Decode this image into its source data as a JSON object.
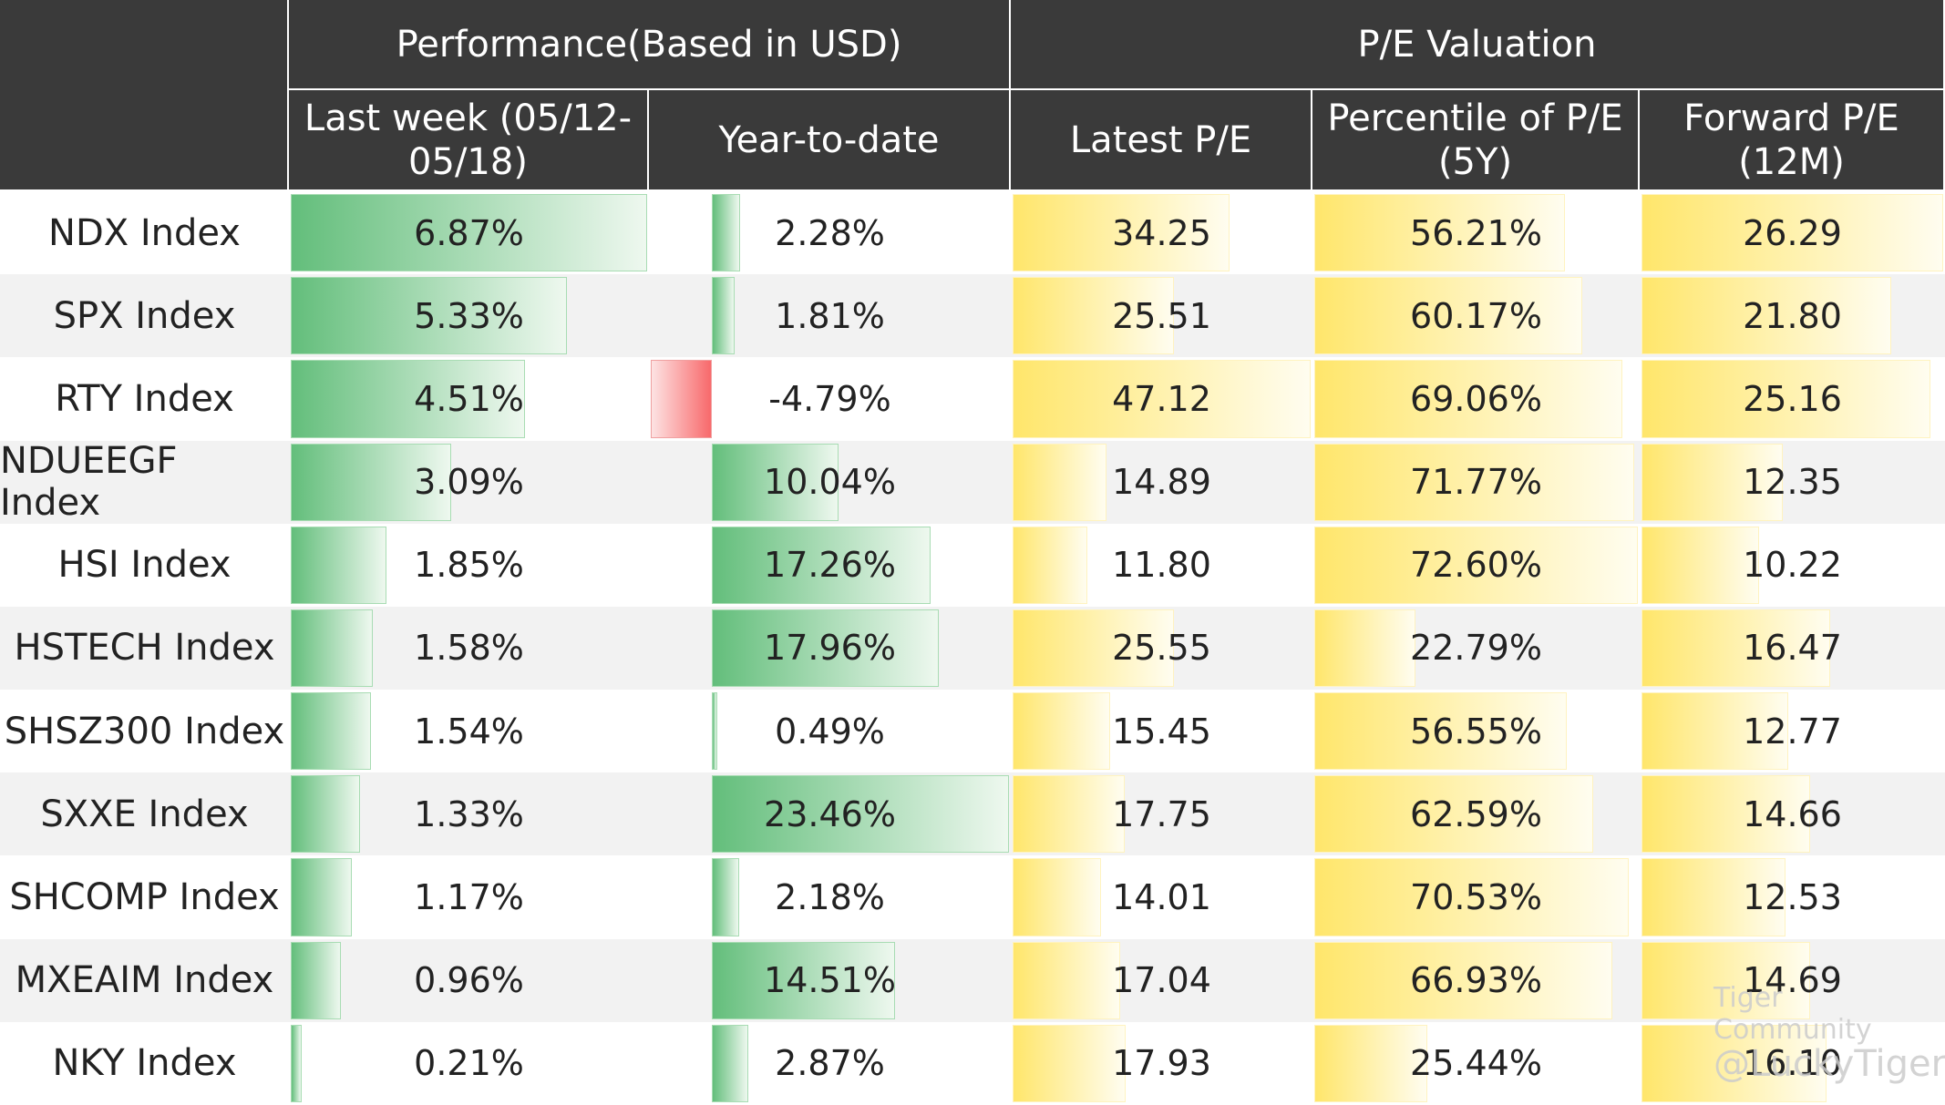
{
  "table": {
    "group_headers": [
      "Performance(Based in USD)",
      "P/E Valuation"
    ],
    "headers": [
      "Last week (05/12-05/18)",
      "Year-to-date",
      "Latest P/E",
      "Percentile of P/E (5Y)",
      "Forward P/E (12M)"
    ],
    "rows": [
      [
        "NDX Index",
        "6.87%",
        "2.28%",
        "34.25",
        "56.21%",
        "26.29"
      ],
      [
        "SPX Index",
        "5.33%",
        "1.81%",
        "25.51",
        "60.17%",
        "21.80"
      ],
      [
        "RTY Index",
        "4.51%",
        "-4.79%",
        "47.12",
        "69.06%",
        "25.16"
      ],
      [
        "NDUEEGF Index",
        "3.09%",
        "10.04%",
        "14.89",
        "71.77%",
        "12.35"
      ],
      [
        "HSI Index",
        "1.85%",
        "17.26%",
        "11.80",
        "72.60%",
        "10.22"
      ],
      [
        "HSTECH Index",
        "1.58%",
        "17.96%",
        "25.55",
        "22.79%",
        "16.47"
      ],
      [
        "SHSZ300 Index",
        "1.54%",
        "0.49%",
        "15.45",
        "56.55%",
        "12.77"
      ],
      [
        "SXXE Index",
        "1.33%",
        "23.46%",
        "17.75",
        "62.59%",
        "14.66"
      ],
      [
        "SHCOMP Index",
        "1.17%",
        "2.18%",
        "14.01",
        "70.53%",
        "12.53"
      ],
      [
        "MXEAIM Index",
        "0.96%",
        "14.51%",
        "17.04",
        "66.93%",
        "14.69"
      ],
      [
        "NKY Index",
        "0.21%",
        "2.87%",
        "17.93",
        "25.44%",
        "16.10"
      ]
    ]
  },
  "watermark": [
    "Tiger Community",
    "@LuckyTiger"
  ]
}
